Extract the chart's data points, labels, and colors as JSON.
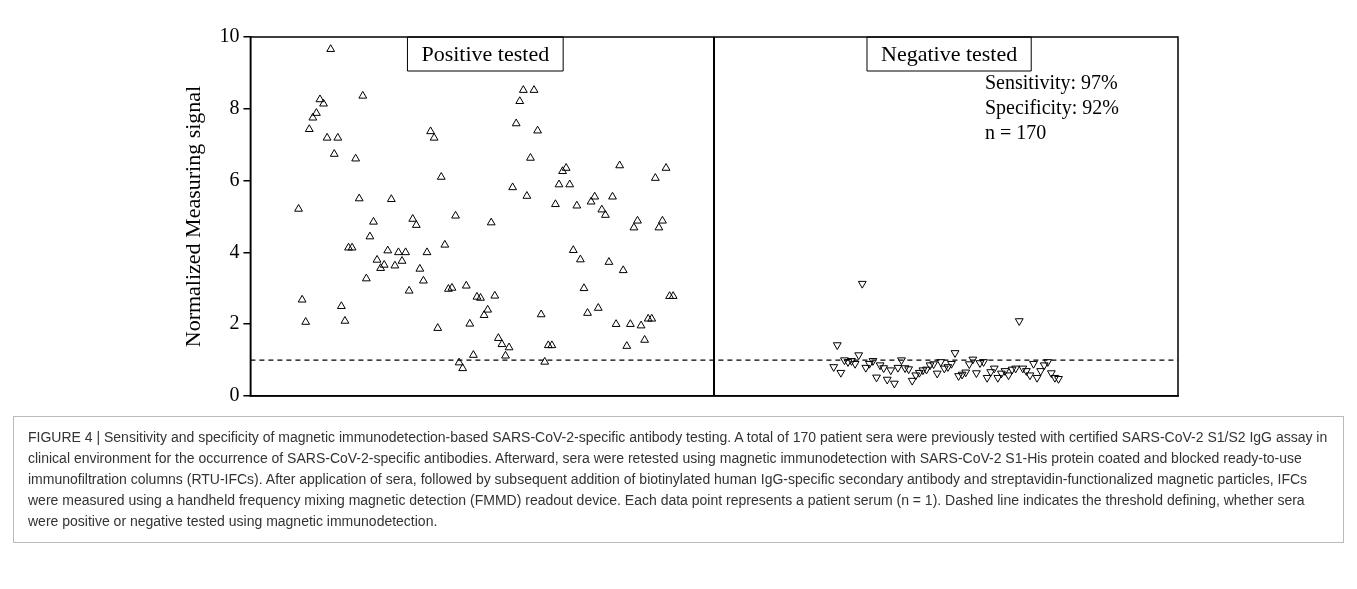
{
  "chart_data": [
    {
      "type": "scatter",
      "ylabel": "Normalized Measuring signal",
      "ylim": [
        0,
        10
      ],
      "yticks": [
        0,
        2,
        4,
        6,
        8,
        10
      ],
      "grid": false,
      "legend": false,
      "categories": [
        null,
        null,
        null,
        null,
        null,
        null,
        null,
        null,
        null,
        null,
        null,
        null,
        null,
        null,
        null,
        null,
        null,
        null,
        null,
        null,
        null,
        null,
        null,
        null,
        null,
        null,
        null,
        null,
        null,
        null,
        null,
        null,
        null,
        null,
        null,
        null,
        null,
        null,
        null,
        null,
        null,
        null,
        null,
        null,
        null,
        null,
        null,
        null,
        null,
        null,
        null,
        null,
        null,
        null,
        null,
        null,
        null,
        null,
        null,
        null,
        null,
        null,
        null,
        null,
        null,
        null,
        null,
        null,
        null,
        null,
        null,
        null,
        null,
        null,
        null,
        null,
        null,
        null,
        null,
        null,
        null,
        null,
        null,
        null,
        null,
        null,
        null,
        null,
        null,
        null,
        null,
        null,
        null,
        null,
        null,
        null,
        null,
        null,
        null,
        null,
        null,
        null,
        null,
        null,
        null,
        null,
        null,
        null,
        null,
        null,
        null,
        null,
        null,
        null,
        null,
        null,
        null,
        null,
        null,
        null,
        null,
        null,
        null,
        null,
        null,
        null,
        null,
        null,
        null,
        null,
        null,
        null,
        null,
        null,
        null,
        null,
        null,
        null,
        null,
        null,
        null,
        null,
        null,
        null,
        null,
        null,
        null,
        null,
        null,
        null,
        null,
        null,
        null,
        null,
        null,
        null,
        null,
        null,
        null,
        null,
        null,
        null,
        null,
        null,
        null,
        null,
        null,
        null,
        null,
        null,
        null,
        null,
        null,
        null,
        null,
        null,
        null,
        null,
        null,
        null,
        null,
        null,
        null,
        null,
        null,
        null,
        null,
        null,
        null,
        null,
        null,
        null,
        null,
        null,
        null,
        null,
        null,
        null,
        null,
        null,
        null,
        null,
        null,
        null,
        null,
        null,
        null,
        null,
        null,
        null,
        null,
        null,
        null,
        null,
        null,
        null,
        null,
        null,
        null,
        null,
        null,
        null,
        null,
        null,
        null,
        null,
        null,
        null,
        null,
        null,
        null,
        null,
        null,
        null,
        null,
        null,
        null,
        null,
        null,
        null,
        null,
        null,
        null,
        null,
        null,
        null,
        null,
        null,
        null,
        null,
        null,
        null,
        null,
        null,
        null,
        null,
        null,
        null,
        null,
        null
      ],
      "series": [
        {
          "color": "#000000",
          "marker": "triangle",
          "values": [
            null,
            null,
            null,
            null,
            null,
            null,
            null,
            null,
            null,
            null,
            null,
            null,
            null,
            5.21,
            2.68,
            2.06,
            7.43,
            7.75,
            7.88,
            8.26,
            8.14,
            7.19,
            9.66,
            6.74,
            7.19,
            2.5,
            2.09,
            4.13,
            4.13,
            6.61,
            5.5,
            8.36,
            3.27,
            4.44,
            4.85,
            3.79,
            3.56,
            3.65,
            4.05,
            5.48,
            3.63,
            4.0,
            3.76,
            4.0,
            2.93,
            4.93,
            4.76,
            3.54,
            3.21,
            4.0,
            7.37,
            7.19,
            1.89,
            6.1,
            4.21,
            2.98,
            3.01,
            5.02,
            0.93,
            0.77,
            3.07,
            2.01,
            1.14,
            2.76,
            2.73,
            2.25,
            2.4,
            4.83,
            2.79,
            1.61,
            1.44,
            1.12,
            1.35,
            5.81,
            7.59,
            8.21,
            8.52,
            5.57,
            6.63,
            8.52,
            7.39,
            2.27,
            0.95,
            1.41,
            1.41,
            5.34,
            5.89,
            6.26,
            6.35,
            5.89,
            4.06,
            5.3,
            3.8,
            3.0,
            2.31,
            5.41,
            5.55,
            2.45,
            5.19,
            5.04,
            3.73,
            5.55,
            2.0,
            6.42,
            3.5,
            1.39,
            2.0,
            4.69,
            4.88,
            1.96,
            1.56,
            2.15,
            2.15,
            6.07,
            4.69,
            4.88,
            6.35,
            2.78,
            2.78,
            null,
            null,
            null,
            null,
            null,
            null,
            null,
            null,
            null,
            null,
            null,
            null,
            null,
            null,
            null,
            null,
            null,
            null,
            null,
            null,
            null,
            null,
            null,
            null,
            null,
            null,
            null,
            null,
            null,
            null,
            null,
            null,
            null,
            null,
            null,
            null,
            null,
            null,
            null,
            null,
            null,
            null,
            null,
            null,
            null,
            null,
            null,
            null,
            null,
            null,
            null,
            null,
            null,
            null,
            null,
            null,
            null,
            null,
            null,
            null,
            null,
            null,
            null,
            null,
            null,
            null,
            null,
            null,
            null,
            null,
            null,
            null,
            null,
            null,
            null,
            null,
            null,
            null,
            null,
            null,
            null,
            null,
            null,
            null,
            null,
            null,
            null,
            null,
            null,
            null,
            null,
            null,
            null,
            null,
            null,
            null,
            null,
            null,
            null,
            null,
            null,
            null,
            null,
            null,
            null,
            null,
            null,
            null,
            null,
            null,
            null,
            null,
            null,
            null,
            null,
            null,
            null,
            null,
            null,
            null,
            null,
            null,
            null,
            null,
            null,
            null,
            null,
            null,
            null,
            null,
            null,
            null,
            null,
            null,
            null,
            null,
            null,
            null,
            null,
            null,
            null
          ]
        },
        {
          "color": "#000000",
          "marker": "triangle_down",
          "values": [
            null,
            null,
            null,
            null,
            null,
            null,
            null,
            null,
            null,
            null,
            null,
            null,
            null,
            null,
            null,
            null,
            null,
            null,
            null,
            null,
            null,
            null,
            null,
            null,
            null,
            null,
            null,
            null,
            null,
            null,
            null,
            null,
            null,
            null,
            null,
            null,
            null,
            null,
            null,
            null,
            null,
            null,
            null,
            null,
            null,
            null,
            null,
            null,
            null,
            null,
            null,
            null,
            null,
            null,
            null,
            null,
            null,
            null,
            null,
            null,
            null,
            null,
            null,
            null,
            null,
            null,
            null,
            null,
            null,
            null,
            null,
            null,
            null,
            null,
            null,
            null,
            null,
            null,
            null,
            null,
            null,
            null,
            null,
            null,
            null,
            null,
            null,
            null,
            null,
            null,
            null,
            null,
            null,
            null,
            null,
            null,
            null,
            null,
            null,
            null,
            null,
            null,
            null,
            null,
            null,
            null,
            null,
            null,
            null,
            null,
            null,
            null,
            null,
            null,
            null,
            null,
            null,
            null,
            null,
            null,
            null,
            null,
            null,
            null,
            null,
            null,
            null,
            null,
            null,
            null,
            null,
            null,
            null,
            null,
            null,
            null,
            null,
            null,
            null,
            null,
            null,
            null,
            null,
            null,
            null,
            null,
            null,
            null,
            null,
            null,
            null,
            null,
            null,
            null,
            null,
            null,
            null,
            null,
            null,
            null,
            null,
            null,
            null,
            0.81,
            1.42,
            0.65,
            1.0,
            0.95,
            0.98,
            0.9,
            1.14,
            3.13,
            0.79,
            0.9,
            0.98,
            0.52,
            0.86,
            0.78,
            0.46,
            0.72,
            0.35,
            0.79,
            1.0,
            0.78,
            0.75,
            0.43,
            0.58,
            0.65,
            0.72,
            0.74,
            0.86,
            0.89,
            0.63,
            0.95,
            0.77,
            0.81,
            0.9,
            1.2,
            0.56,
            0.6,
            0.66,
            0.89,
            1.02,
            0.64,
            0.92,
            0.95,
            0.51,
            0.67,
            0.77,
            0.51,
            0.63,
            0.7,
            0.58,
            0.74,
            0.77,
            2.09,
            0.77,
            0.7,
            0.58,
            0.9,
            0.51,
            0.7,
            0.86,
            0.95,
            0.64,
            0.51,
            0.48,
            null,
            null,
            null,
            null,
            null,
            null,
            null,
            null,
            null,
            null,
            null,
            null,
            null,
            null,
            null,
            null,
            null,
            null,
            null,
            null,
            null,
            null,
            null,
            null,
            null,
            null,
            null,
            null,
            null,
            null,
            null,
            null,
            null
          ]
        }
      ],
      "ref_lines": [
        {
          "axis": "y",
          "value": 1,
          "color": "#000000",
          "line_style": "dashed"
        }
      ],
      "annotations": [
        "Positive tested",
        "Negative tested",
        "Sensitivity: 97%",
        "Specificity: 92%",
        "n = 170"
      ]
    },
    {
      "type": "other",
      "annotations": [
        "FIGURE 4 | Sensitivity and specificity of magnetic immunodetection-based SARS-CoV-2-specific antibody testing. A total of 170 patient sera were previously tested with certified SARS-CoV-2 S1/S2 IgG assay in clinical environment for the occurrence of SARS-CoV-2-specific antibodies. Afterward, sera were retested using magnetic immunodetection with SARS-CoV-2 S1-His protein coated and blocked ready-to-use immunofiltration columns (RTU-IFCs). After application of sera, followed by subsequent addition of biotinylated human IgG-specific secondary antibody and streptavidin-functionalized magnetic particles, IFCs were measured using a handheld frequency mixing magnetic detection (FMMD) readout device. Each data point represents a patient serum (n = 1). Dashed line indicates the threshold defining, whether sera were positive or negative tested using magnetic immunodetection."
      ]
    }
  ]
}
